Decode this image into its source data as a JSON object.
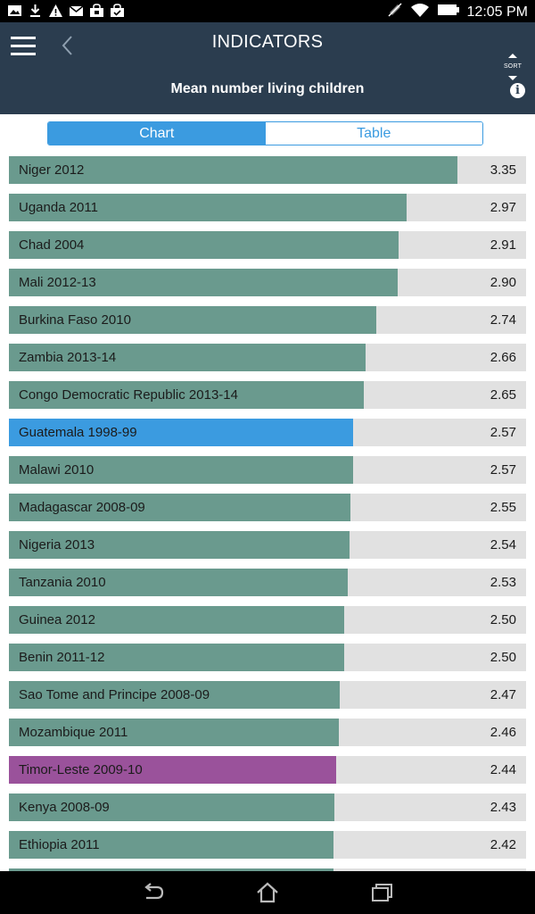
{
  "status_bar": {
    "time": "12:05 PM",
    "left_icons": [
      "image-icon",
      "download-icon",
      "warning-icon",
      "mail-icon",
      "shopping-bag-icon",
      "shopping-bag-check-icon"
    ],
    "right_icons": [
      "mute-icon",
      "wifi-icon",
      "battery-icon"
    ]
  },
  "header": {
    "title": "INDICATORS",
    "subtitle": "Mean number living children",
    "sort_label": "SORT",
    "info_label": "i"
  },
  "toggle": {
    "chart_label": "Chart",
    "table_label": "Table",
    "active": "Chart"
  },
  "colors": {
    "default_bar": "#6a9a8e",
    "track": "#e1e1e1",
    "accent": "#3b9be0",
    "highlight_purple": "#9a529b",
    "header_bg": "#2b3d4f"
  },
  "chart_data": {
    "type": "bar",
    "orientation": "horizontal",
    "title": "Mean number living children",
    "xlim": [
      0,
      3.86
    ],
    "categories": [
      "Niger 2012",
      "Uganda 2011",
      "Chad 2004",
      "Mali 2012-13",
      "Burkina Faso 2010",
      "Zambia 2013-14",
      "Congo Democratic Republic 2013-14",
      "Guatemala 1998-99",
      "Malawi 2010",
      "Madagascar 2008-09",
      "Nigeria 2013",
      "Tanzania 2010",
      "Guinea 2012",
      "Benin 2011-12",
      "Sao Tome and Principe 2008-09",
      "Mozambique 2011",
      "Timor-Leste 2009-10",
      "Kenya 2008-09",
      "Ethiopia 2011"
    ],
    "values": [
      3.35,
      2.97,
      2.91,
      2.9,
      2.74,
      2.66,
      2.65,
      2.57,
      2.57,
      2.55,
      2.54,
      2.53,
      2.5,
      2.5,
      2.47,
      2.46,
      2.44,
      2.43,
      2.42
    ],
    "labels": [
      "3.35",
      "2.97",
      "2.91",
      "2.90",
      "2.74",
      "2.66",
      "2.65",
      "2.57",
      "2.57",
      "2.55",
      "2.54",
      "2.53",
      "2.50",
      "2.50",
      "2.47",
      "2.46",
      "2.44",
      "2.43",
      "2.42"
    ],
    "highlight": {
      "Guatemala 1998-99": "#3b9be0",
      "Timor-Leste 2009-10": "#9a529b"
    }
  }
}
